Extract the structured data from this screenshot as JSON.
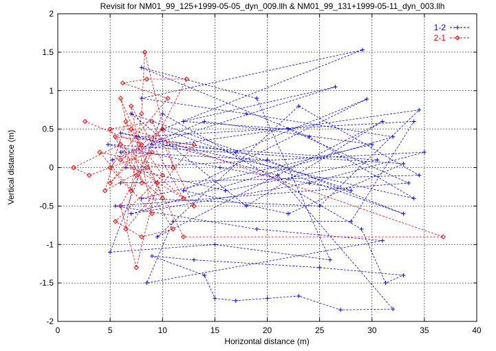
{
  "chart_data": {
    "type": "line",
    "title": "Revisit for NM01_99_125+1999-05-05_dyn_009.llh & NM01_99_131+1999-05-11_dyn_003.llh",
    "xlabel": "Horizontal distance (m)",
    "ylabel": "Vertical distance (m)",
    "xlim": [
      0,
      40
    ],
    "ylim": [
      -2,
      2
    ],
    "xticks": [
      "0",
      "5",
      "10",
      "15",
      "20",
      "25",
      "30",
      "35",
      "40"
    ],
    "yticks": [
      "-2",
      "-1.5",
      "-1",
      "-0.5",
      "0",
      "0.5",
      "1",
      "1.5",
      "2"
    ],
    "grid": true,
    "legend_position": "top-right",
    "series": [
      {
        "name": "1-2",
        "color": "#0000ff",
        "marker": "plus",
        "line": "dashed",
        "points": [
          [
            5.2,
            0.1
          ],
          [
            14,
            0.6
          ],
          [
            30,
            0.3
          ],
          [
            8,
            -0.4
          ],
          [
            25,
            -0.5
          ],
          [
            34.5,
            0.75
          ],
          [
            6,
            0.2
          ],
          [
            20,
            0.1
          ],
          [
            33,
            -0.6
          ],
          [
            10,
            0.5
          ],
          [
            29.1,
            1.53
          ],
          [
            8,
            0.9
          ],
          [
            18,
            0.7
          ],
          [
            32,
            0.4
          ],
          [
            7,
            -0.6
          ],
          [
            24,
            -0.2
          ],
          [
            35,
            0.2
          ],
          [
            6.5,
            0.0
          ],
          [
            16,
            -0.3
          ],
          [
            30.5,
            0.1
          ],
          [
            9,
            0.3
          ],
          [
            26.5,
            1.05
          ],
          [
            12,
            0.6
          ],
          [
            22,
            0.5
          ],
          [
            33.5,
            -0.2
          ],
          [
            5.5,
            -0.5
          ],
          [
            19,
            -0.8
          ],
          [
            31,
            -0.95
          ],
          [
            8.5,
            -1.5
          ],
          [
            11,
            -0.7
          ],
          [
            28,
            -0.7
          ],
          [
            34,
            0.6
          ],
          [
            7.5,
            0.4
          ],
          [
            21,
            -0.1
          ],
          [
            32,
            -1.84
          ],
          [
            27,
            -1.85
          ],
          [
            23,
            -1.67
          ],
          [
            20,
            -1.7
          ],
          [
            17,
            -1.73
          ],
          [
            15,
            -1.7
          ],
          [
            14,
            -1.4
          ],
          [
            9,
            -1.15
          ],
          [
            13,
            -1.2
          ],
          [
            25,
            -1.3
          ],
          [
            33,
            -1.4
          ],
          [
            31.3,
            -1.5
          ],
          [
            29,
            -0.8
          ],
          [
            10,
            0.7
          ],
          [
            5,
            -1.1
          ],
          [
            15,
            -1.0
          ],
          [
            26,
            -1.2
          ],
          [
            19,
            0.9
          ],
          [
            8,
            1.3
          ],
          [
            24,
            0.4
          ],
          [
            34,
            -0.4
          ],
          [
            6,
            0.45
          ],
          [
            17,
            0.2
          ],
          [
            29.5,
            0.89
          ],
          [
            12,
            -0.3
          ],
          [
            22,
            -0.6
          ],
          [
            33,
            0.05
          ],
          [
            4.8,
            0.3
          ],
          [
            15.5,
            0.0
          ],
          [
            28,
            -0.3
          ],
          [
            7,
            0.7
          ],
          [
            18,
            -0.5
          ],
          [
            31,
            0.6
          ],
          [
            9.5,
            -0.9
          ],
          [
            23,
            0.8
          ],
          [
            34.5,
            -0.1
          ],
          [
            6,
            -0.2
          ]
        ]
      },
      {
        "name": "2-1",
        "color": "#ff0000",
        "marker": "diamond",
        "line": "dashed",
        "points": [
          [
            2.6,
            0.6
          ],
          [
            8,
            0.3
          ],
          [
            5,
            -0.2
          ],
          [
            10,
            0.5
          ],
          [
            6,
            0.1
          ],
          [
            12,
            -0.4
          ],
          [
            7,
            0.8
          ],
          [
            9,
            -0.6
          ],
          [
            4,
            0.2
          ],
          [
            11,
            0.0
          ],
          [
            8.3,
            1.5
          ],
          [
            8,
            0.7
          ],
          [
            6.5,
            -0.8
          ],
          [
            13,
            0.3
          ],
          [
            5.5,
            0.4
          ],
          [
            9.5,
            -0.2
          ],
          [
            7.5,
            -1.3
          ],
          [
            6,
            -0.5
          ],
          [
            12.3,
            1.15
          ],
          [
            8.5,
            1.15
          ],
          [
            6.2,
            1.1
          ],
          [
            10.5,
            0.9
          ],
          [
            5,
            0.0
          ],
          [
            7,
            -0.3
          ],
          [
            9,
            0.2
          ],
          [
            3,
            -0.1
          ],
          [
            1.5,
            0.0
          ],
          [
            6,
            0.3
          ],
          [
            11,
            -0.8
          ],
          [
            8,
            -0.9
          ],
          [
            5.5,
            -0.7
          ],
          [
            10,
            -0.1
          ],
          [
            7,
            0.5
          ],
          [
            36.8,
            -0.9
          ],
          [
            12,
            -0.9
          ],
          [
            6.5,
            0.6
          ],
          [
            4.5,
            -0.3
          ],
          [
            8.5,
            0.0
          ],
          [
            13,
            -0.5
          ],
          [
            9,
            0.6
          ],
          [
            5,
            0.5
          ],
          [
            7.5,
            -0.1
          ],
          [
            10,
            -0.4
          ],
          [
            6,
            0.9
          ],
          [
            8,
            -0.2
          ]
        ]
      }
    ]
  }
}
